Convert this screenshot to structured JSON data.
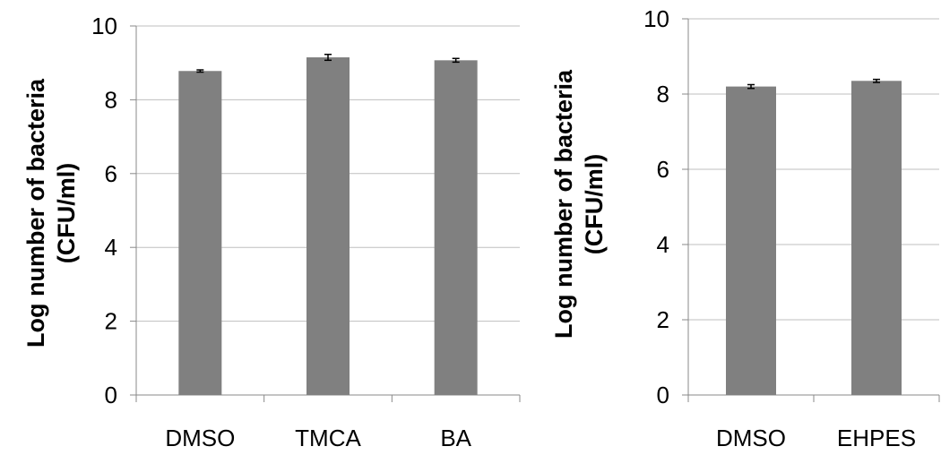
{
  "chart_data": [
    {
      "type": "bar",
      "categories": [
        "DMSO",
        "TMCA",
        "BA"
      ],
      "values": [
        8.78,
        9.15,
        9.07
      ],
      "errors": [
        0.03,
        0.08,
        0.05
      ],
      "title": "",
      "xlabel": "",
      "ylabel_line1": "Log  number of bacteria",
      "ylabel_line2": "(CFU/ml)",
      "ylim": [
        0,
        10
      ],
      "yticks": [
        "0",
        "2",
        "4",
        "6",
        "8",
        "10"
      ],
      "grid": true,
      "bar_color": "#808080",
      "grid_color": "#bfbfbf"
    },
    {
      "type": "bar",
      "categories": [
        "DMSO",
        "EHPES"
      ],
      "values": [
        8.2,
        8.35
      ],
      "errors": [
        0.05,
        0.04
      ],
      "title": "",
      "xlabel": "",
      "ylabel_line1": "Log  number of bacteria",
      "ylabel_line2": "(CFU/ml)",
      "ylim": [
        0,
        10
      ],
      "yticks": [
        "0",
        "2",
        "4",
        "6",
        "8",
        "10"
      ],
      "grid": true,
      "bar_color": "#808080",
      "grid_color": "#bfbfbf"
    }
  ]
}
